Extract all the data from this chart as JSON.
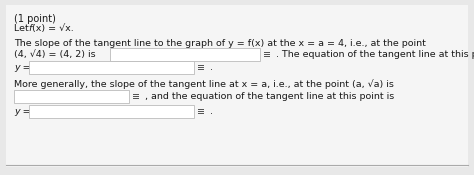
{
  "bg_color": "#e8e8e8",
  "card_color": "#f5f5f5",
  "box_bg": "#ffffff",
  "box_border": "#bbbbbb",
  "line_color": "#aaaaaa",
  "text_color": "#1a1a1a",
  "grid_color": "#555555",
  "title": "(1 point)",
  "let_line": "Let f(x) = √x.",
  "line1": "The slope of the tangent line to the graph of y = f(x) at the x = a = 4, i.e., at the point",
  "line2a": "(4, √4) = (4, 2) is",
  "line2b": ". The equation of the tangent line at this point is",
  "line3_label": "y =",
  "line4": "More generally, the slope of the tangent line at x = a, i.e., at the point (a, √a) is",
  "line5b": ", and the equation of the tangent line at this point is",
  "line6_label": "y =",
  "font_size": 6.8,
  "font_size_title": 7.0
}
